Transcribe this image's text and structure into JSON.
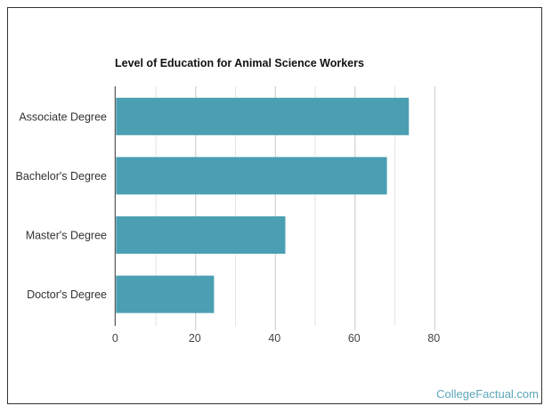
{
  "chart_data": {
    "type": "bar",
    "orientation": "horizontal",
    "title": "Level of Education for Animal Science Workers",
    "categories": [
      "Associate Degree",
      "Bachelor's Degree",
      "Master's Degree",
      "Doctor's Degree"
    ],
    "values": [
      73.5,
      68,
      42.5,
      24.6
    ],
    "xlabel": "",
    "ylabel": "",
    "xlim": [
      0,
      90
    ],
    "xticks": [
      "0",
      "20",
      "40",
      "60",
      "80"
    ],
    "grid": true,
    "bar_color": "#4a9fb2"
  },
  "credit": "CollegeFactual.com"
}
